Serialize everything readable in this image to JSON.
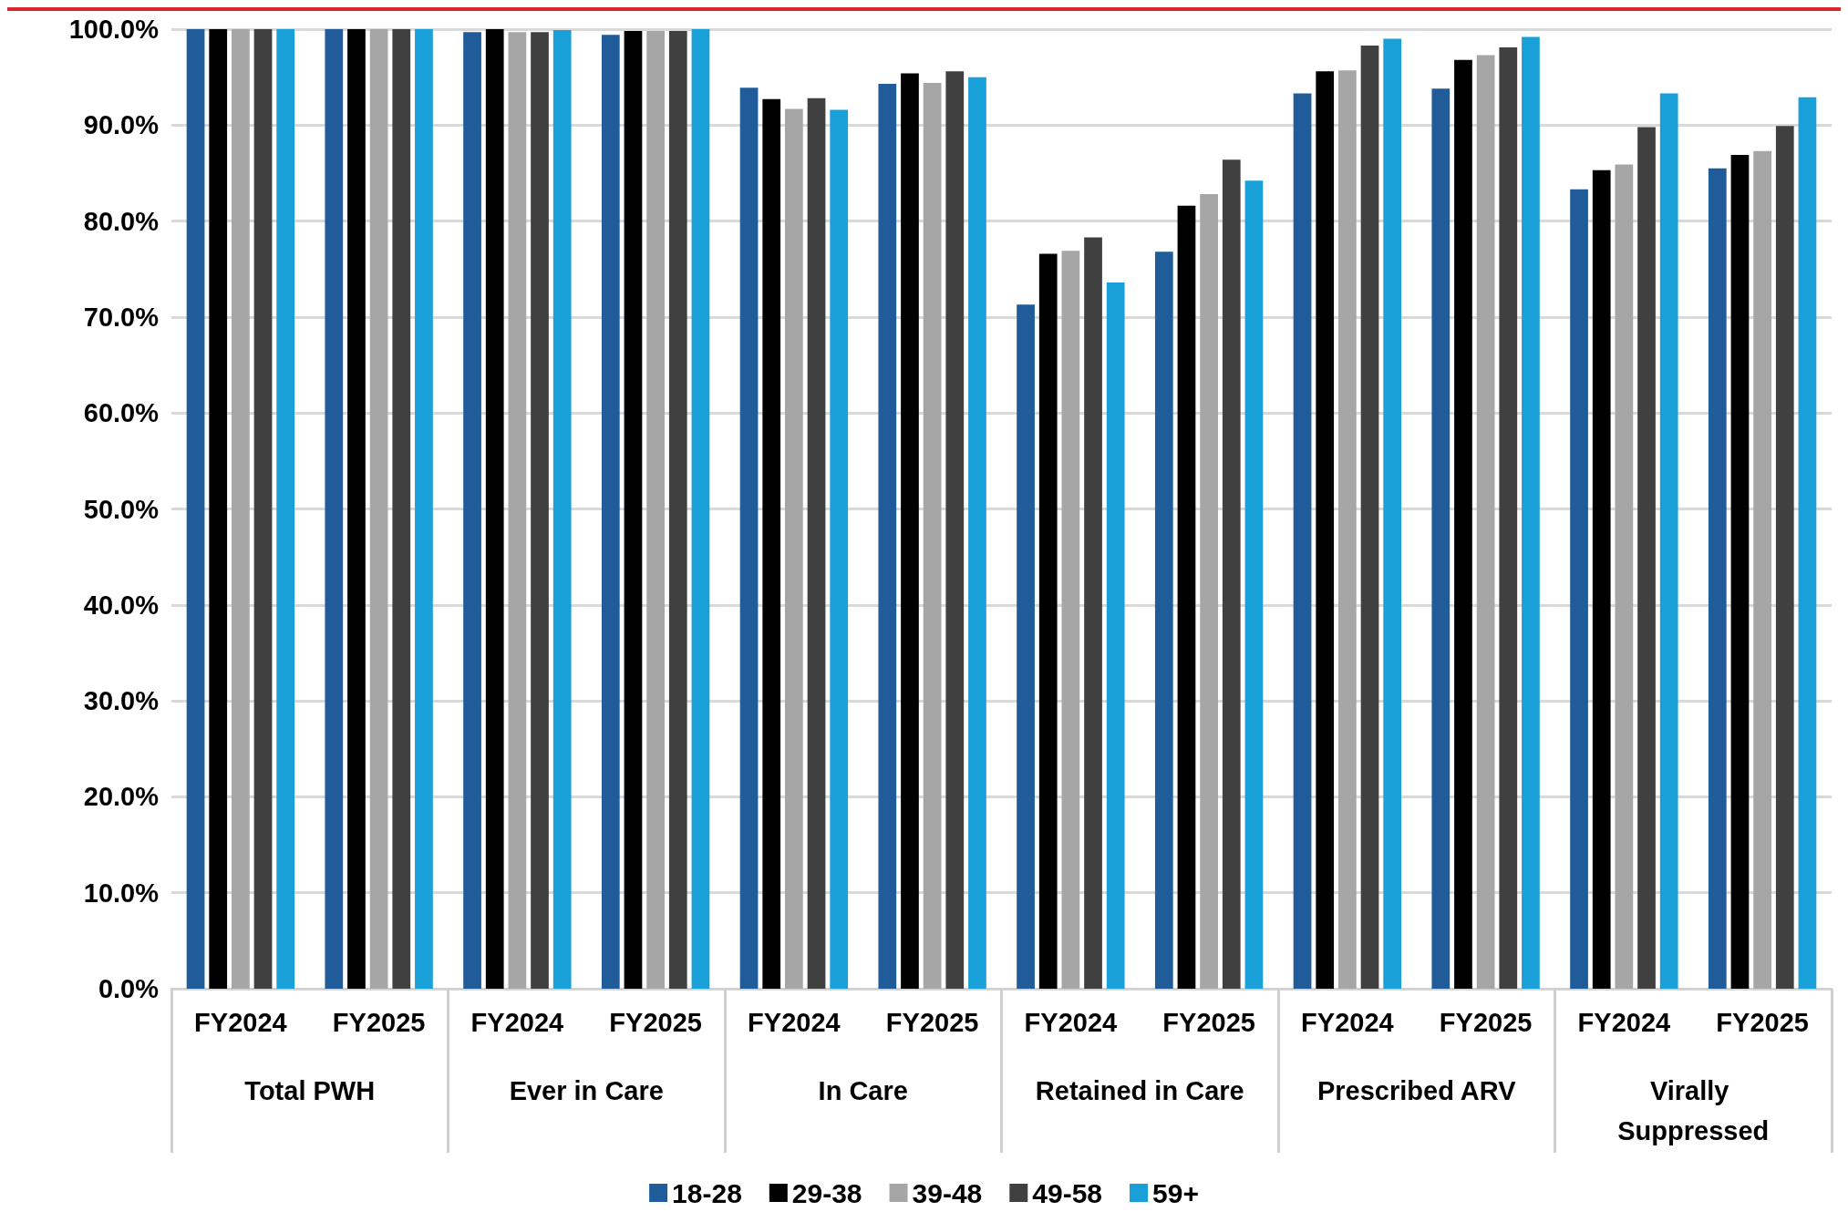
{
  "chart_data": {
    "type": "bar",
    "categories": [
      "FY2024",
      "FY2025",
      "FY2024",
      "FY2025",
      "FY2024",
      "FY2025",
      "FY2024",
      "FY2025",
      "FY2024",
      "FY2025",
      "FY2024",
      "FY2025"
    ],
    "annotations": [
      "Total PWH",
      "Ever in Care",
      "In Care",
      "Retained in Care",
      "Prescribed ARV",
      "Virally Suppressed"
    ],
    "series": [
      {
        "name": "18-28",
        "color": "#1f5c99",
        "values": [
          100,
          100,
          99.7,
          99.4,
          93.9,
          94.3,
          71.3,
          76.8,
          93.3,
          93.8,
          83.3,
          85.5
        ]
      },
      {
        "name": "29-38",
        "color": "#000000",
        "values": [
          100,
          100,
          100,
          99.8,
          92.7,
          95.4,
          76.6,
          81.6,
          95.6,
          96.8,
          85.3,
          86.9
        ]
      },
      {
        "name": "39-48",
        "color": "#a6a6a6",
        "values": [
          100,
          100,
          99.7,
          99.8,
          91.7,
          94.4,
          76.9,
          82.8,
          95.7,
          97.3,
          85.9,
          87.3
        ]
      },
      {
        "name": "49-58",
        "color": "#404040",
        "values": [
          100,
          100,
          99.7,
          99.8,
          92.8,
          95.6,
          78.3,
          86.4,
          98.3,
          98.1,
          89.8,
          89.9
        ]
      },
      {
        "name": "59+",
        "color": "#1aa0d8",
        "values": [
          100,
          100,
          99.9,
          100,
          91.6,
          95.0,
          73.6,
          84.2,
          99.0,
          99.2,
          93.3,
          92.9
        ]
      }
    ],
    "ylim": [
      0,
      100
    ],
    "yticks": [
      {
        "value": 0,
        "label": "0.0%"
      },
      {
        "value": 10,
        "label": "10.0%"
      },
      {
        "value": 20,
        "label": "20.0%"
      },
      {
        "value": 30,
        "label": "30.0%"
      },
      {
        "value": 40,
        "label": "40.0%"
      },
      {
        "value": 50,
        "label": "50.0%"
      },
      {
        "value": 60,
        "label": "60.0%"
      },
      {
        "value": 70,
        "label": "70.0%"
      },
      {
        "value": 80,
        "label": "80.0%"
      },
      {
        "value": 90,
        "label": "90.0%"
      },
      {
        "value": 100,
        "label": "100.0%"
      }
    ],
    "grid": "y",
    "legend": "bottom"
  }
}
